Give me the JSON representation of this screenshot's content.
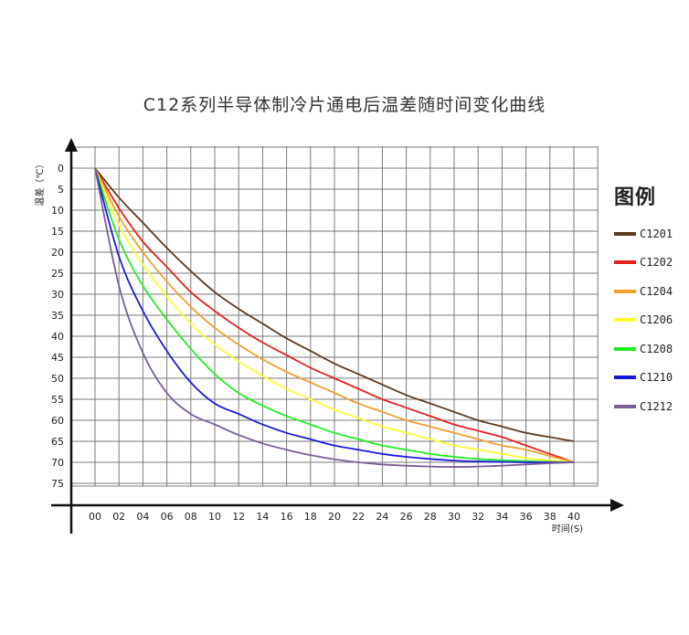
{
  "chart_data": {
    "type": "line",
    "title": "C12系列半导体制冷片通电后温差随时间变化曲线",
    "xlabel": "时间(S)",
    "ylabel": "温差（℃）",
    "x_ticks": [
      "00",
      "02",
      "04",
      "06",
      "08",
      "10",
      "12",
      "14",
      "16",
      "18",
      "20",
      "22",
      "24",
      "26",
      "28",
      "30",
      "32",
      "34",
      "36",
      "38",
      "40"
    ],
    "y_ticks": [
      "0",
      "5",
      "10",
      "15",
      "20",
      "25",
      "30",
      "35",
      "40",
      "45",
      "50",
      "55",
      "60",
      "65",
      "70",
      "75"
    ],
    "xlim": [
      0,
      40
    ],
    "ylim": [
      0,
      80
    ],
    "y_inverted": true,
    "grid": true,
    "legend_title": "图例",
    "legend_position": "right",
    "x": [
      0,
      2,
      4,
      6,
      8,
      10,
      12,
      14,
      16,
      18,
      20,
      22,
      24,
      26,
      28,
      30,
      32,
      34,
      36,
      38,
      40
    ],
    "series": [
      {
        "name": "C1201",
        "color": "#5c3a1e",
        "values": [
          0,
          7,
          13,
          19,
          24.5,
          29.5,
          33.5,
          37,
          40.5,
          43.5,
          46.5,
          49,
          51.5,
          54,
          56,
          58,
          60,
          61.5,
          63,
          64,
          65
        ]
      },
      {
        "name": "C1202",
        "color": "#e8201c",
        "values": [
          0,
          9.5,
          17.5,
          23.5,
          29.5,
          34,
          38,
          41.5,
          44.5,
          47.5,
          50,
          52.5,
          55,
          57,
          59,
          61,
          62.5,
          64,
          66,
          68,
          70
        ]
      },
      {
        "name": "C1204",
        "color": "#f0a030",
        "values": [
          0,
          11.5,
          20,
          27,
          33,
          38,
          42,
          45.5,
          48.5,
          51,
          53.5,
          56,
          58,
          60,
          61.5,
          63,
          64.5,
          66,
          67,
          68.5,
          70
        ]
      },
      {
        "name": "C1206",
        "color": "#ffff30",
        "values": [
          0,
          13.5,
          23,
          30.5,
          37,
          42,
          46,
          49.5,
          52.5,
          55,
          57.5,
          59.5,
          61.5,
          63,
          64.5,
          66,
          67,
          68,
          69,
          69.5,
          70
        ]
      },
      {
        "name": "C1208",
        "color": "#22ee22",
        "values": [
          0,
          17,
          28,
          36,
          43,
          49,
          53.5,
          56.5,
          59,
          61,
          63,
          64.5,
          66,
          67,
          68,
          68.7,
          69.2,
          69.5,
          69.7,
          69.9,
          70
        ]
      },
      {
        "name": "C1210",
        "color": "#1a1adf",
        "values": [
          0,
          21,
          34,
          43.5,
          51,
          56,
          58.5,
          61,
          63,
          64.5,
          66,
          67,
          68,
          68.7,
          69.2,
          69.6,
          69.8,
          69.9,
          70,
          70,
          70
        ]
      },
      {
        "name": "C1212",
        "color": "#7a5e95",
        "values": [
          0,
          28,
          44,
          53.5,
          58.5,
          61,
          63.5,
          65.5,
          67,
          68.3,
          69.3,
          70,
          70.5,
          70.8,
          71,
          71.1,
          71,
          70.8,
          70.5,
          70.2,
          70
        ]
      }
    ]
  }
}
